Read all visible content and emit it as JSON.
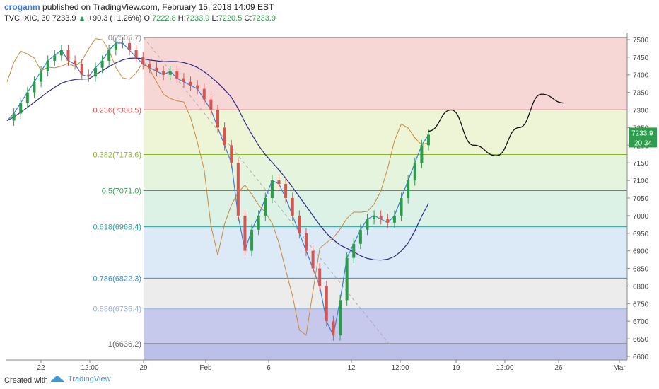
{
  "header": {
    "author": "croganm",
    "published_text": "published on TradingView.com, February 15, 2018 14:09 EST",
    "symbol": "TVC:IXIC, 30",
    "last": "7233.9",
    "change": "+90.3 (+1.26%)",
    "o_label": "O:",
    "o_value": "7222.8",
    "h_label": "H:",
    "h_value": "7233.9",
    "l_label": "L:",
    "l_value": "7220.5",
    "c_label": "C:",
    "c_value": "7233.9"
  },
  "footer": {
    "created_with": "Created with",
    "brand": "TradingView"
  },
  "chart_data": {
    "type": "line",
    "ylim": [
      6590,
      7520
    ],
    "y_ticks": [
      6600,
      6650,
      6700,
      6750,
      6800,
      6850,
      6900,
      6950,
      7000,
      7050,
      7100,
      7150,
      7200,
      7250,
      7300,
      7350,
      7400,
      7450,
      7500
    ],
    "x_ticks": [
      "22",
      "12:00",
      "29",
      "Feb",
      "6",
      "12",
      "12:00",
      "19",
      "12:00",
      "26",
      "Mar"
    ],
    "price_label": "7233.9",
    "countdown_label": "20:34",
    "fib_levels": [
      {
        "label": "0(7505.7)",
        "value": 7505.7,
        "color": "#888888"
      },
      {
        "label": "0.236(7300.5)",
        "value": 7300.5,
        "color": "#d9534f"
      },
      {
        "label": "0.382(7173.6)",
        "value": 7173.6,
        "color": "#8bb62a"
      },
      {
        "label": "0.5(7071.0)",
        "value": 7071.0,
        "color": "#3aa35a"
      },
      {
        "label": "0.618(6968.4)",
        "value": 6968.4,
        "color": "#25a59a"
      },
      {
        "label": "0.786(6822.3)",
        "value": 6822.3,
        "color": "#3c8ed1"
      },
      {
        "label": "0.886(6735.4)",
        "value": 6735.4,
        "color": "#9ab3e0"
      },
      {
        "label": "1(6636.2)",
        "value": 6636.2,
        "color": "#666666"
      }
    ],
    "fib_zones": [
      {
        "from": 7505.7,
        "to": 7300.5,
        "color": "#f7d6d6"
      },
      {
        "from": 7300.5,
        "to": 7173.6,
        "color": "#eef5d6"
      },
      {
        "from": 7173.6,
        "to": 7071.0,
        "color": "#e5f4dc"
      },
      {
        "from": 7071.0,
        "to": 6968.4,
        "color": "#dcf2e6"
      },
      {
        "from": 6968.4,
        "to": 6822.3,
        "color": "#dce9f7"
      },
      {
        "from": 6822.3,
        "to": 6735.4,
        "color": "#ececec"
      },
      {
        "from": 6735.4,
        "to": 6636.2,
        "color": "#c7c9ec"
      },
      {
        "from": 6636.2,
        "to": 6590,
        "color": "#bcbfe8"
      }
    ],
    "close_series": [
      7270,
      7290,
      7320,
      7350,
      7380,
      7410,
      7440,
      7455,
      7470,
      7440,
      7430,
      7400,
      7395,
      7420,
      7440,
      7470,
      7490,
      7490,
      7470,
      7450,
      7430,
      7420,
      7410,
      7400,
      7410,
      7390,
      7380,
      7370,
      7360,
      7330,
      7300,
      7250,
      7200,
      7150,
      7000,
      6900,
      6960,
      7000,
      7050,
      7100,
      7090,
      7050,
      7000,
      6950,
      6900,
      6850,
      6800,
      6700,
      6660,
      6760,
      6880,
      6920,
      6960,
      6990,
      7000,
      6990,
      6980,
      7000,
      7050,
      7100,
      7150,
      7200,
      7230
    ],
    "forecast_path": [
      [
        7240,
        0
      ],
      [
        7300,
        1
      ],
      [
        7200,
        2
      ],
      [
        7170,
        3
      ],
      [
        7250,
        4
      ],
      [
        7345,
        5
      ],
      [
        7320,
        6
      ]
    ]
  }
}
